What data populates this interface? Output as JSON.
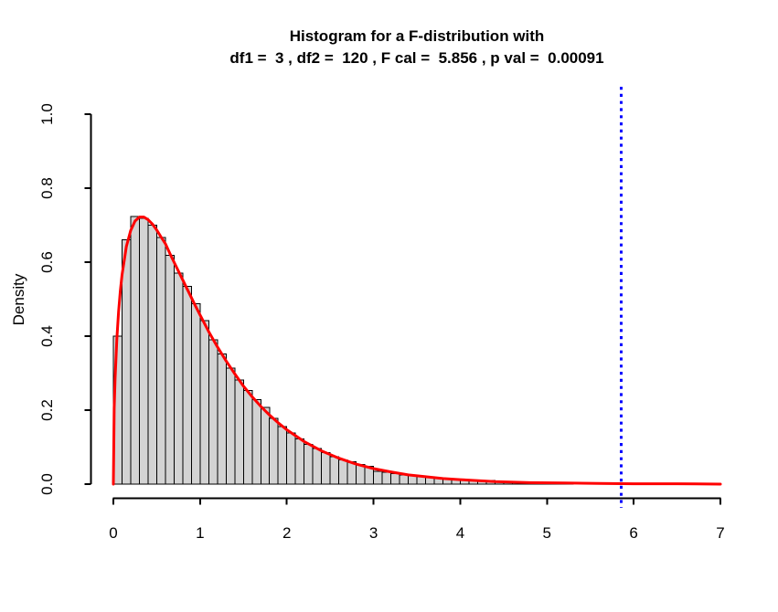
{
  "chart_data": {
    "type": "bar",
    "subtype": "histogram-with-density-curve",
    "title": "Histogram for a F-distribution with",
    "subtitle": "df1 =  3 , df2 =  120 , F cal =  5.856 , p val =  0.00091",
    "xlabel": "",
    "ylabel": "Density",
    "xlim": [
      0,
      7
    ],
    "ylim": [
      0,
      1.0
    ],
    "x_ticks": [
      "0",
      "1",
      "2",
      "3",
      "4",
      "5",
      "6",
      "7"
    ],
    "y_ticks": [
      "0.0",
      "0.2",
      "0.4",
      "0.6",
      "0.8",
      "1.0"
    ],
    "grid": false,
    "legend": "none",
    "params": {
      "df1": 3,
      "df2": 120,
      "f_cal": 5.856,
      "p_val": 0.00091
    },
    "histogram": {
      "bin_start": 0.0,
      "bin_width": 0.1,
      "fill_color": "#d3d3d3",
      "border_color": "#000000",
      "densities": [
        0.4,
        0.66,
        0.723,
        0.718,
        0.7,
        0.667,
        0.618,
        0.57,
        0.535,
        0.488,
        0.442,
        0.39,
        0.352,
        0.314,
        0.281,
        0.253,
        0.228,
        0.207,
        0.178,
        0.156,
        0.138,
        0.122,
        0.108,
        0.096,
        0.085,
        0.074,
        0.066,
        0.06,
        0.053,
        0.048,
        0.035,
        0.032,
        0.029,
        0.025,
        0.022,
        0.02,
        0.017,
        0.016,
        0.014,
        0.012,
        0.011,
        0.009,
        0.008,
        0.01,
        0.007,
        0.006,
        0.005,
        0.005,
        0.004,
        0.003,
        0.003,
        0.002,
        0.002
      ]
    },
    "density_curve": {
      "color": "#ff0000",
      "line_width": 3,
      "x": [
        0,
        0.01,
        0.02,
        0.04,
        0.06,
        0.08,
        0.1,
        0.15,
        0.2,
        0.25,
        0.3,
        0.35,
        0.4,
        0.45,
        0.5,
        0.55,
        0.6,
        0.65,
        0.7,
        0.75,
        0.8,
        0.85,
        0.9,
        0.95,
        1.0,
        1.1,
        1.2,
        1.3,
        1.4,
        1.5,
        1.6,
        1.7,
        1.8,
        1.9,
        2.0,
        2.2,
        2.4,
        2.6,
        2.8,
        3.0,
        3.2,
        3.4,
        3.6,
        3.8,
        4.0,
        4.4,
        4.8,
        5.2,
        5.6,
        6.0,
        6.5,
        7.0
      ],
      "y": [
        0.0,
        0.205,
        0.286,
        0.392,
        0.466,
        0.522,
        0.566,
        0.642,
        0.686,
        0.711,
        0.722,
        0.722,
        0.715,
        0.703,
        0.687,
        0.668,
        0.65,
        0.624,
        0.6,
        0.576,
        0.552,
        0.528,
        0.504,
        0.48,
        0.457,
        0.412,
        0.371,
        0.333,
        0.298,
        0.265,
        0.236,
        0.21,
        0.187,
        0.166,
        0.147,
        0.115,
        0.09,
        0.07,
        0.054,
        0.042,
        0.033,
        0.025,
        0.02,
        0.015,
        0.012,
        0.007,
        0.004,
        0.003,
        0.002,
        0.001,
        0.001,
        0.0
      ]
    },
    "f_cal_line": {
      "x": 5.856,
      "color": "#0000ff",
      "style": "dotted",
      "line_width": 3
    }
  }
}
